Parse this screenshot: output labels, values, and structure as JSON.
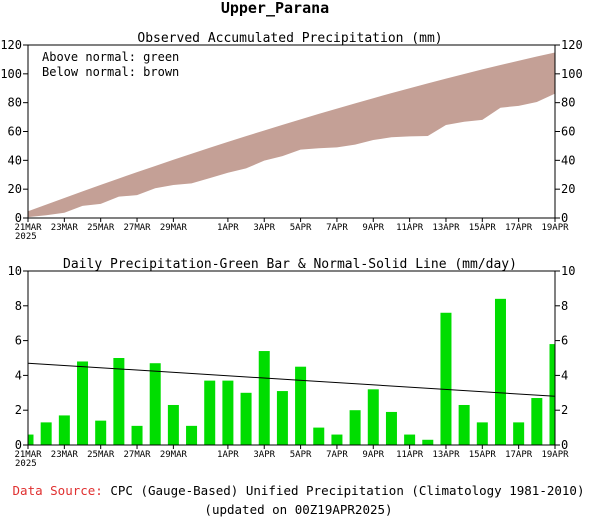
{
  "page_title": "Upper_Parana",
  "footer": {
    "source_label": "Data Source:",
    "source_text": "CPC (Gauge-Based) Unified Precipitation (Climatology 1981-2010)",
    "updated_text": "(updated on 00Z19APR2025)"
  },
  "colors": {
    "band": "#c4a096",
    "bar": "#00dd00",
    "normal_line": "#000000",
    "source_label": "#e03030"
  },
  "x_ticks": [
    "21MAR",
    "23MAR",
    "25MAR",
    "27MAR",
    "29MAR",
    "1APR",
    "3APR",
    "5APR",
    "7APR",
    "9APR",
    "11APR",
    "13APR",
    "15APR",
    "17APR",
    "19APR"
  ],
  "x_year": "2025",
  "chart_data": [
    {
      "type": "area",
      "title": "Observed Accumulated Precipitation (mm)",
      "xlabel": "",
      "ylabel": "",
      "ylim": [
        0,
        120
      ],
      "yticks": [
        0,
        20,
        40,
        60,
        80,
        100,
        120
      ],
      "grid": false,
      "legend_text": [
        "Above normal: green",
        "Below normal: brown"
      ],
      "days": [
        "21MAR",
        "22MAR",
        "23MAR",
        "24MAR",
        "25MAR",
        "26MAR",
        "27MAR",
        "28MAR",
        "29MAR",
        "30MAR",
        "31MAR",
        "1APR",
        "2APR",
        "3APR",
        "4APR",
        "5APR",
        "6APR",
        "7APR",
        "8APR",
        "9APR",
        "10APR",
        "11APR",
        "12APR",
        "13APR",
        "14APR",
        "15APR",
        "16APR",
        "17APR",
        "18APR",
        "19APR"
      ],
      "series": [
        {
          "name": "Normal",
          "values": [
            4.7,
            9.3,
            13.9,
            18.5,
            23.0,
            27.4,
            31.8,
            36.1,
            40.4,
            44.6,
            48.7,
            52.8,
            56.8,
            60.7,
            64.6,
            68.4,
            72.2,
            75.9,
            79.5,
            83.1,
            86.6,
            90.0,
            93.4,
            96.7,
            99.9,
            103.1,
            106.1,
            109.1,
            112.0,
            114.8
          ]
        },
        {
          "name": "Observed",
          "values": [
            0.6,
            1.9,
            3.6,
            8.4,
            9.8,
            14.8,
            15.9,
            20.6,
            22.9,
            24.0,
            27.7,
            31.4,
            34.4,
            39.8,
            42.9,
            47.4,
            48.4,
            49.0,
            50.9,
            54.1,
            56.0,
            56.6,
            56.9,
            64.5,
            66.8,
            68.1,
            76.5,
            77.8,
            80.5,
            86.3
          ]
        }
      ]
    },
    {
      "type": "bar",
      "title": "Daily Precipitation-Green Bar & Normal-Solid Line (mm/day)",
      "xlabel": "",
      "ylabel": "",
      "ylim": [
        0,
        10
      ],
      "yticks": [
        0,
        2,
        4,
        6,
        8,
        10
      ],
      "grid": false,
      "categories": [
        "21MAR",
        "22MAR",
        "23MAR",
        "24MAR",
        "25MAR",
        "26MAR",
        "27MAR",
        "28MAR",
        "29MAR",
        "30MAR",
        "31MAR",
        "1APR",
        "2APR",
        "3APR",
        "4APR",
        "5APR",
        "6APR",
        "7APR",
        "8APR",
        "9APR",
        "10APR",
        "11APR",
        "12APR",
        "13APR",
        "14APR",
        "15APR",
        "16APR",
        "17APR",
        "18APR",
        "19APR"
      ],
      "values": [
        0.6,
        1.3,
        1.7,
        4.8,
        1.4,
        5.0,
        1.1,
        4.7,
        2.3,
        1.1,
        3.7,
        3.7,
        3.0,
        5.4,
        3.1,
        4.5,
        1.0,
        0.6,
        2.0,
        3.2,
        1.9,
        0.6,
        0.3,
        7.6,
        2.3,
        1.3,
        8.4,
        1.3,
        2.7,
        5.8
      ],
      "normal_line": {
        "start": 4.7,
        "end": 2.8
      }
    }
  ]
}
